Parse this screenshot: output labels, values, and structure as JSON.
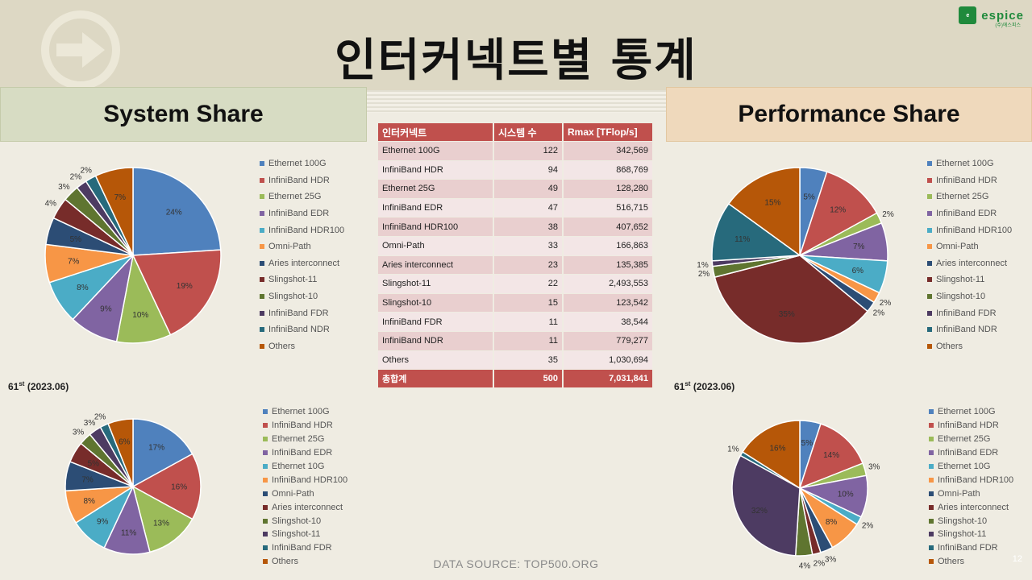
{
  "title": "인터커넥트별 통계",
  "brand": {
    "name": "espice",
    "sub": "(주)에스피스"
  },
  "sections": {
    "system": "System Share",
    "performance": "Performance Share"
  },
  "period_tag": {
    "prefix": "61",
    "sup": "st",
    "suffix": " (2023.06)"
  },
  "table": {
    "headers": [
      "인터커넥트",
      "시스템 수",
      "Rmax [TFlop/s]"
    ],
    "rows": [
      {
        "name": "Ethernet 100G",
        "systems": "122",
        "rmax": "342,569"
      },
      {
        "name": "InfiniBand HDR",
        "systems": "94",
        "rmax": "868,769"
      },
      {
        "name": "Ethernet 25G",
        "systems": "49",
        "rmax": "128,280"
      },
      {
        "name": "InfiniBand EDR",
        "systems": "47",
        "rmax": "516,715"
      },
      {
        "name": "InfiniBand HDR100",
        "systems": "38",
        "rmax": "407,652"
      },
      {
        "name": "Omni-Path",
        "systems": "33",
        "rmax": "166,863"
      },
      {
        "name": "Aries interconnect",
        "systems": "23",
        "rmax": "135,385"
      },
      {
        "name": "Slingshot-11",
        "systems": "22",
        "rmax": "2,493,553"
      },
      {
        "name": "Slingshot-10",
        "systems": "15",
        "rmax": "123,542"
      },
      {
        "name": "InfiniBand FDR",
        "systems": "11",
        "rmax": "38,544"
      },
      {
        "name": "InfiniBand NDR",
        "systems": "11",
        "rmax": "779,277"
      },
      {
        "name": "Others",
        "systems": "35",
        "rmax": "1,030,694"
      }
    ],
    "total": {
      "name": "총합계",
      "systems": "500",
      "rmax": "7,031,841"
    }
  },
  "source": "DATA SOURCE: TOP500.ORG",
  "page_number": "12",
  "chart_data": [
    {
      "type": "pie",
      "id": "system-share-current",
      "categories": [
        "Ethernet 100G",
        "InfiniBand HDR",
        "Ethernet 25G",
        "InfiniBand EDR",
        "InfiniBand HDR100",
        "Omni-Path",
        "Aries interconnect",
        "Slingshot-11",
        "Slingshot-10",
        "InfiniBand FDR",
        "InfiniBand NDR",
        "Others"
      ],
      "values": [
        24,
        19,
        10,
        9,
        8,
        7,
        5,
        4,
        3,
        2,
        2,
        7
      ],
      "labels": [
        "24%",
        "19%",
        "10%",
        "9%",
        "8%",
        "7%",
        "5%",
        "4%",
        "3%",
        "2%",
        "2%",
        "7%"
      ],
      "colors": [
        "#4f81bd",
        "#c0504d",
        "#9bbb59",
        "#8064a2",
        "#4bacc6",
        "#f79646",
        "#2c4d75",
        "#772c2a",
        "#5f7530",
        "#4d3b62",
        "#276a7c",
        "#b65708"
      ],
      "legend": "right"
    },
    {
      "type": "pie",
      "id": "performance-share-current",
      "categories": [
        "Ethernet 100G",
        "InfiniBand HDR",
        "Ethernet 25G",
        "InfiniBand EDR",
        "InfiniBand HDR100",
        "Omni-Path",
        "Aries interconnect",
        "Slingshot-11",
        "Slingshot-10",
        "InfiniBand FDR",
        "InfiniBand NDR",
        "Others"
      ],
      "values": [
        5,
        12,
        2,
        7,
        6,
        2,
        2,
        35,
        2,
        1,
        11,
        15
      ],
      "labels": [
        "5%",
        "12%",
        "2%",
        "7%",
        "6%",
        "2%",
        "2%",
        "35%",
        "2%",
        "1%",
        "11%",
        "15%"
      ],
      "colors": [
        "#4f81bd",
        "#c0504d",
        "#9bbb59",
        "#8064a2",
        "#4bacc6",
        "#f79646",
        "#2c4d75",
        "#772c2a",
        "#5f7530",
        "#4d3b62",
        "#276a7c",
        "#b65708"
      ],
      "legend": "right"
    },
    {
      "type": "pie",
      "id": "system-share-2023-06",
      "categories": [
        "Ethernet 100G",
        "InfiniBand HDR",
        "Ethernet 25G",
        "InfiniBand EDR",
        "Ethernet 10G",
        "InfiniBand HDR100",
        "Omni-Path",
        "Aries interconnect",
        "Slingshot-10",
        "Slingshot-11",
        "InfiniBand FDR",
        "Others"
      ],
      "values": [
        17,
        16,
        13,
        11,
        9,
        8,
        7,
        5,
        3,
        3,
        2,
        6
      ],
      "labels": [
        "17%",
        "16%",
        "13%",
        "11%",
        "9%",
        "8%",
        "7%",
        "5%",
        "3%",
        "3%",
        "2%",
        "6%"
      ],
      "colors": [
        "#4f81bd",
        "#c0504d",
        "#9bbb59",
        "#8064a2",
        "#4bacc6",
        "#f79646",
        "#2c4d75",
        "#772c2a",
        "#5f7530",
        "#4d3b62",
        "#276a7c",
        "#b65708"
      ],
      "legend": "right"
    },
    {
      "type": "pie",
      "id": "performance-share-2023-06",
      "categories": [
        "Ethernet 100G",
        "InfiniBand HDR",
        "Ethernet 25G",
        "InfiniBand EDR",
        "Ethernet 10G",
        "InfiniBand HDR100",
        "Omni-Path",
        "Aries interconnect",
        "Slingshot-10",
        "Slingshot-11",
        "InfiniBand FDR",
        "Others"
      ],
      "values": [
        5,
        14,
        3,
        10,
        2,
        8,
        3,
        2,
        4,
        32,
        1,
        16
      ],
      "labels": [
        "5%",
        "14%",
        "3%",
        "10%",
        "2%",
        "8%",
        "3%",
        "2%",
        "4%",
        "32%",
        "1%",
        "16%"
      ],
      "colors": [
        "#4f81bd",
        "#c0504d",
        "#9bbb59",
        "#8064a2",
        "#4bacc6",
        "#f79646",
        "#2c4d75",
        "#772c2a",
        "#5f7530",
        "#4d3b62",
        "#276a7c",
        "#b65708"
      ],
      "legend": "right"
    }
  ]
}
